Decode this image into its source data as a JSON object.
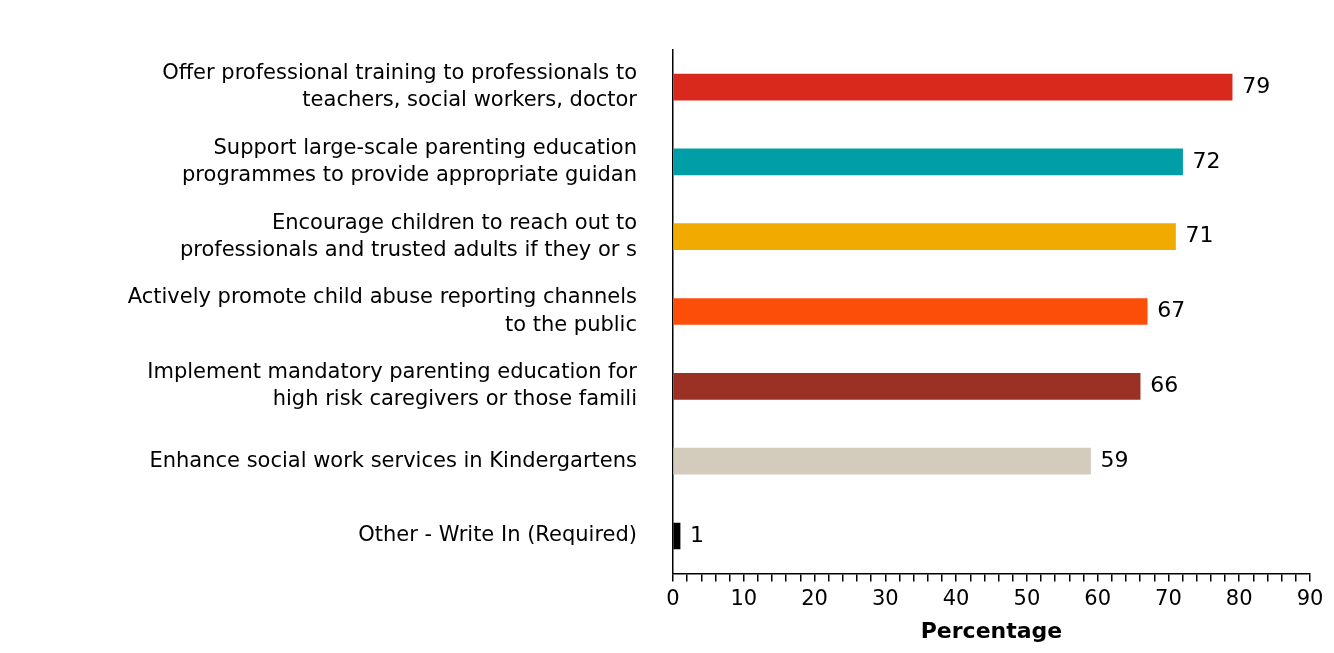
{
  "chart_data": {
    "type": "bar",
    "orientation": "horizontal",
    "xlabel": "Percentage",
    "categories": [
      "Offer professional training to professionals to\nteachers, social workers, doctor",
      "Support large-scale parenting education\nprogrammes to provide appropriate guidan",
      "Encourage children to reach out to\nprofessionals and trusted adults if they or s",
      "Actively promote child abuse reporting channels\nto the public",
      "Implement mandatory parenting education for\nhigh risk caregivers or those famili",
      "Enhance social work services in Kindergartens",
      "Other - Write In (Required)"
    ],
    "values": [
      79,
      72,
      71,
      67,
      66,
      59,
      1
    ],
    "colors": [
      "#d9291c",
      "#009ea6",
      "#f0aa00",
      "#fc4e08",
      "#9b3124",
      "#d3ccbd",
      "#000000"
    ],
    "xlim": [
      0,
      90
    ],
    "xticks": [
      0,
      {
        "value": 2,
        "label": null
      },
      {
        "value": 4,
        "label": null
      },
      {
        "value": 6,
        "label": null
      },
      {
        "value": 8,
        "label": null
      },
      10,
      {
        "value": 12,
        "label": null
      },
      {
        "value": 14,
        "label": null
      },
      {
        "value": 16,
        "label": null
      },
      {
        "value": 18,
        "label": null
      },
      20,
      {
        "value": 22,
        "label": null
      },
      {
        "value": 24,
        "label": null
      },
      {
        "value": 26,
        "label": null
      },
      {
        "value": 28,
        "label": null
      },
      30,
      {
        "value": 32,
        "label": null
      },
      {
        "value": 34,
        "label": null
      },
      {
        "value": 36,
        "label": null
      },
      {
        "value": 38,
        "label": null
      },
      40,
      {
        "value": 42,
        "label": null
      },
      {
        "value": 44,
        "label": null
      },
      {
        "value": 46,
        "label": null
      },
      {
        "value": 48,
        "label": null
      },
      50,
      {
        "value": 52,
        "label": null
      },
      {
        "value": 54,
        "label": null
      },
      {
        "value": 56,
        "label": null
      },
      {
        "value": 58,
        "label": null
      },
      60,
      {
        "value": 62,
        "label": null
      },
      {
        "value": 64,
        "label": null
      },
      {
        "value": 66,
        "label": null
      },
      {
        "value": 68,
        "label": null
      },
      70,
      {
        "value": 72,
        "label": null
      },
      {
        "value": 74,
        "label": null
      },
      {
        "value": 76,
        "label": null
      },
      {
        "value": 78,
        "label": null
      },
      80,
      {
        "value": 82,
        "label": null
      },
      {
        "value": 84,
        "label": null
      },
      {
        "value": 86,
        "label": null
      },
      {
        "value": 88,
        "label": null
      },
      90
    ],
    "data_labels": true,
    "grid": false,
    "legend": false
  }
}
